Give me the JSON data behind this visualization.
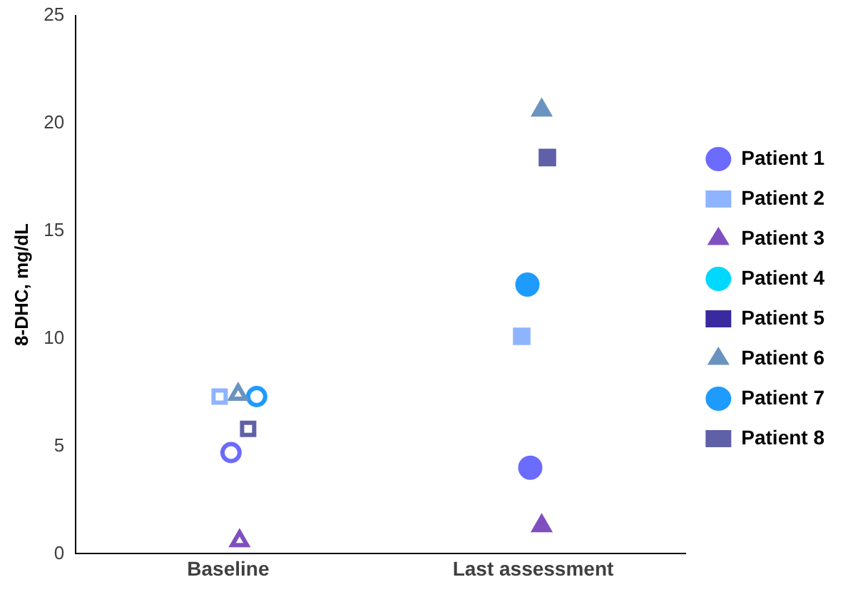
{
  "chart_data": {
    "type": "scatter",
    "ylabel": "8-DHC, mg/dL",
    "categories": [
      "Baseline",
      "Last assessment"
    ],
    "ylim": [
      0,
      25
    ],
    "yticks": [
      0,
      5,
      10,
      15,
      20,
      25
    ],
    "grid": false,
    "legend": "right",
    "series": [
      {
        "name": "Patient 1",
        "color": "#6b6bff",
        "marker": "circle",
        "values": [
          4.7,
          4.0
        ]
      },
      {
        "name": "Patient 2",
        "color": "#8fb4ff",
        "marker": "square",
        "values": [
          7.3,
          10.1
        ]
      },
      {
        "name": "Patient 3",
        "color": "#7f4fbf",
        "marker": "triangle",
        "values": [
          0.6,
          1.3
        ]
      },
      {
        "name": "Patient 4",
        "color": "#00d8ff",
        "marker": "circle",
        "values": [
          null,
          null
        ]
      },
      {
        "name": "Patient 5",
        "color": "#3a2a9f",
        "marker": "square",
        "values": [
          null,
          null
        ]
      },
      {
        "name": "Patient 6",
        "color": "#6a93c0",
        "marker": "triangle",
        "values": [
          7.4,
          20.6
        ]
      },
      {
        "name": "Patient 7",
        "color": "#1e9bff",
        "marker": "circle",
        "values": [
          7.3,
          12.5
        ]
      },
      {
        "name": "Patient 8",
        "color": "#6060a8",
        "marker": "square",
        "values": [
          5.8,
          18.4
        ]
      }
    ]
  }
}
